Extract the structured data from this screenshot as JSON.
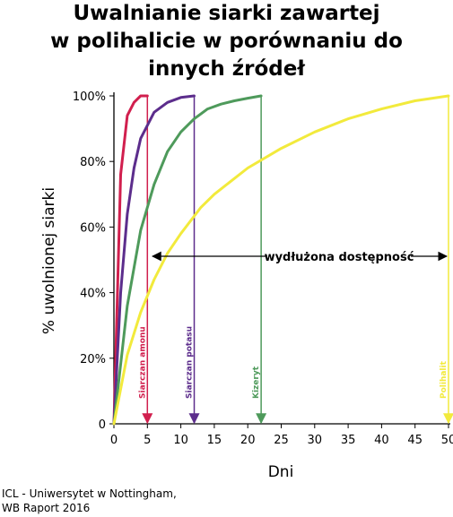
{
  "title_lines": [
    "Uwalnianie siarki zawartej",
    "w polihalicie w porównaniu do",
    "innych źródeł"
  ],
  "source_lines": [
    "ICL - Uniwersytet w Nottingham,",
    "WB Raport 2016"
  ],
  "chart_data": {
    "type": "line",
    "title": "Uwalnianie siarki zawartej w polihalicie w porównaniu do innych źródeł",
    "xlabel": "Dni",
    "ylabel": "% uwolnionej siarki",
    "xlim": [
      0,
      50
    ],
    "ylim": [
      0,
      100
    ],
    "xticks": [
      "0",
      "5",
      "10",
      "15",
      "20",
      "25",
      "30",
      "35",
      "40",
      "45",
      "50"
    ],
    "yticks": [
      "0",
      "20%",
      "40%",
      "60%",
      "80%",
      "100%"
    ],
    "grid": false,
    "series": [
      {
        "name": "Siarczan amonu",
        "color": "#d11f4e",
        "end_day": 5,
        "x": [
          0,
          1,
          2,
          3,
          4,
          5
        ],
        "y": [
          0,
          76,
          94,
          98,
          100,
          100
        ]
      },
      {
        "name": "Siarczan potasu",
        "color": "#5c2d8c",
        "end_day": 12,
        "x": [
          0,
          1,
          2,
          3,
          4,
          6,
          8,
          10,
          12
        ],
        "y": [
          0,
          40,
          64,
          78,
          87,
          95,
          98,
          99.5,
          100
        ]
      },
      {
        "name": "Kizeryt",
        "color": "#4e9a5b",
        "end_day": 22,
        "x": [
          0,
          2,
          4,
          6,
          8,
          10,
          12,
          14,
          16,
          18,
          20,
          22
        ],
        "y": [
          0,
          36,
          59,
          73,
          83,
          89,
          93,
          96,
          97.5,
          98.5,
          99.3,
          100
        ]
      },
      {
        "name": "Polihalit",
        "color": "#f2ea3c",
        "end_day": 50,
        "x": [
          0,
          2,
          4,
          6,
          8,
          10,
          13,
          15,
          20,
          25,
          30,
          35,
          40,
          45,
          50
        ],
        "y": [
          0,
          21,
          34,
          44,
          52,
          58,
          66,
          70,
          78,
          84,
          89,
          93,
          96,
          98.5,
          100
        ]
      }
    ],
    "annotations": [
      {
        "text": "wydłużona dostępność",
        "from_day": 5.5,
        "to_day": 50,
        "y": 50
      }
    ]
  }
}
